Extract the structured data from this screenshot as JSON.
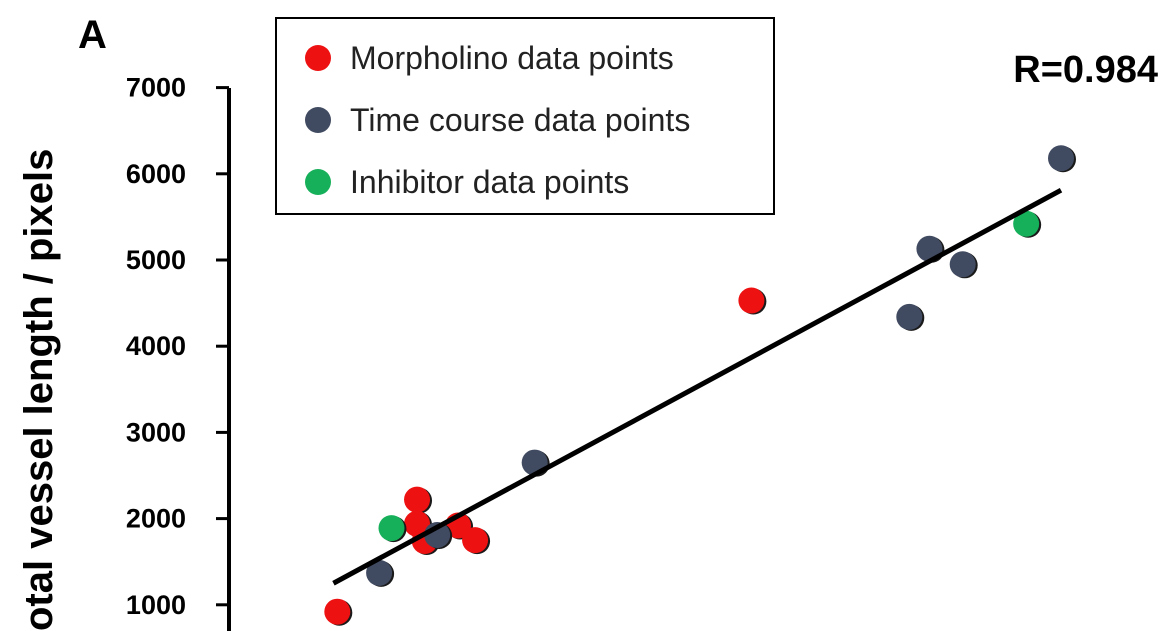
{
  "panel_label": "A",
  "chart_data": {
    "type": "scatter",
    "title": "",
    "ylabel": "otal vessel length / pixels",
    "xlabel": "",
    "ylim": [
      0,
      7000
    ],
    "y_ticks": [
      1000,
      2000,
      3000,
      4000,
      5000,
      6000,
      7000
    ],
    "y_tick_labels": [
      "1000",
      "2000",
      "3000",
      "4000",
      "5000",
      "6000",
      "7000"
    ],
    "xlim": [
      0,
      100
    ],
    "annotation": "R=0.984",
    "legend_position": "top-left",
    "series": [
      {
        "name": "Morpholino data points",
        "color": "#ee1111",
        "points": [
          {
            "x": 6.5,
            "y": 920
          },
          {
            "x": 16.8,
            "y": 2220
          },
          {
            "x": 16.8,
            "y": 1940
          },
          {
            "x": 17.8,
            "y": 1740
          },
          {
            "x": 22.1,
            "y": 1920
          },
          {
            "x": 24.3,
            "y": 1750
          },
          {
            "x": 60.0,
            "y": 4530
          }
        ]
      },
      {
        "name": "Time course data points",
        "color": "#404a60",
        "points": [
          {
            "x": 11.9,
            "y": 1370
          },
          {
            "x": 19.4,
            "y": 1810
          },
          {
            "x": 32.0,
            "y": 2650
          },
          {
            "x": 80.4,
            "y": 4340
          },
          {
            "x": 83.0,
            "y": 5130
          },
          {
            "x": 87.3,
            "y": 4950
          },
          {
            "x": 100.0,
            "y": 6180
          }
        ]
      },
      {
        "name": "Inhibitor data points",
        "color": "#17b05a",
        "points": [
          {
            "x": 13.5,
            "y": 1890
          },
          {
            "x": 95.5,
            "y": 5420
          }
        ]
      }
    ],
    "trendline": {
      "x": [
        6.0,
        100.0
      ],
      "y": [
        1250,
        5810
      ],
      "color": "#000000"
    }
  }
}
